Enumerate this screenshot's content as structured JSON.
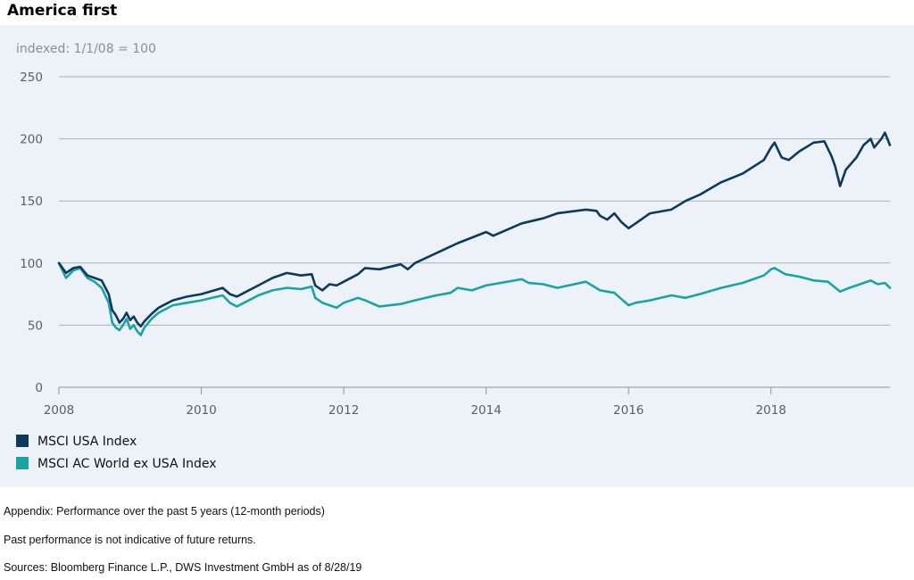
{
  "title": "America first",
  "footnotes": [
    "Appendix: Performance over the past 5 years (12-month periods)",
    "Past performance is not indicative of future returns.",
    "Sources: Bloomberg Finance L.P., DWS Investment GmbH as of 8/28/19"
  ],
  "chart_data": {
    "type": "line",
    "subtitle": "indexed: 1/1/08 = 100",
    "xlabel": "",
    "ylabel": "",
    "xlim": [
      2008,
      2019.67
    ],
    "ylim": [
      0,
      250
    ],
    "x_ticks": [
      2008,
      2010,
      2012,
      2014,
      2016,
      2018
    ],
    "y_ticks": [
      0,
      50,
      100,
      150,
      200,
      250
    ],
    "grid": true,
    "legend_position": "bottom-left",
    "series": [
      {
        "name": "MSCI USA Index",
        "color": "#0d3a5c",
        "x": [
          2008.0,
          2008.1,
          2008.2,
          2008.3,
          2008.4,
          2008.5,
          2008.6,
          2008.7,
          2008.75,
          2008.8,
          2008.85,
          2008.9,
          2008.95,
          2009.0,
          2009.05,
          2009.1,
          2009.15,
          2009.2,
          2009.3,
          2009.4,
          2009.5,
          2009.6,
          2009.8,
          2010.0,
          2010.3,
          2010.4,
          2010.5,
          2010.6,
          2010.8,
          2011.0,
          2011.2,
          2011.4,
          2011.55,
          2011.6,
          2011.7,
          2011.8,
          2011.9,
          2012.0,
          2012.2,
          2012.3,
          2012.5,
          2012.8,
          2012.9,
          2013.0,
          2013.3,
          2013.6,
          2014.0,
          2014.1,
          2014.5,
          2014.8,
          2015.0,
          2015.4,
          2015.55,
          2015.6,
          2015.7,
          2015.8,
          2015.9,
          2016.0,
          2016.1,
          2016.3,
          2016.6,
          2016.8,
          2017.0,
          2017.3,
          2017.6,
          2017.9,
          2018.0,
          2018.05,
          2018.15,
          2018.25,
          2018.4,
          2018.6,
          2018.75,
          2018.85,
          2018.9,
          2018.97,
          2019.05,
          2019.2,
          2019.3,
          2019.4,
          2019.45,
          2019.55,
          2019.6,
          2019.67
        ],
        "values": [
          100,
          92,
          96,
          97,
          90,
          88,
          86,
          75,
          62,
          58,
          52,
          55,
          60,
          54,
          57,
          52,
          49,
          53,
          59,
          64,
          67,
          70,
          73,
          75,
          80,
          75,
          73,
          76,
          82,
          88,
          92,
          90,
          91,
          82,
          78,
          83,
          82,
          85,
          91,
          96,
          95,
          99,
          95,
          100,
          108,
          116,
          125,
          122,
          132,
          136,
          140,
          143,
          142,
          138,
          135,
          140,
          133,
          128,
          132,
          140,
          143,
          150,
          155,
          165,
          172,
          183,
          193,
          197,
          185,
          183,
          190,
          197,
          198,
          186,
          178,
          162,
          175,
          185,
          195,
          200,
          193,
          200,
          205,
          195
        ]
      },
      {
        "name": "MSCI AC World ex USA Index",
        "color": "#1aa3a3",
        "x": [
          2008.0,
          2008.1,
          2008.2,
          2008.3,
          2008.4,
          2008.5,
          2008.6,
          2008.7,
          2008.75,
          2008.8,
          2008.85,
          2008.9,
          2008.95,
          2009.0,
          2009.05,
          2009.1,
          2009.15,
          2009.2,
          2009.3,
          2009.4,
          2009.5,
          2009.6,
          2009.8,
          2010.0,
          2010.3,
          2010.4,
          2010.5,
          2010.6,
          2010.8,
          2011.0,
          2011.2,
          2011.4,
          2011.55,
          2011.6,
          2011.7,
          2011.8,
          2011.9,
          2012.0,
          2012.2,
          2012.3,
          2012.5,
          2012.8,
          2013.0,
          2013.3,
          2013.5,
          2013.6,
          2013.8,
          2014.0,
          2014.5,
          2014.6,
          2014.8,
          2015.0,
          2015.4,
          2015.6,
          2015.8,
          2016.0,
          2016.1,
          2016.3,
          2016.6,
          2016.8,
          2017.0,
          2017.3,
          2017.6,
          2017.9,
          2018.0,
          2018.05,
          2018.2,
          2018.4,
          2018.6,
          2018.8,
          2018.97,
          2019.1,
          2019.3,
          2019.4,
          2019.5,
          2019.6,
          2019.67
        ],
        "values": [
          100,
          88,
          94,
          96,
          88,
          85,
          80,
          68,
          52,
          48,
          46,
          50,
          55,
          47,
          50,
          45,
          42,
          48,
          55,
          60,
          63,
          66,
          68,
          70,
          74,
          68,
          65,
          68,
          74,
          78,
          80,
          79,
          81,
          72,
          68,
          66,
          64,
          68,
          72,
          70,
          65,
          67,
          70,
          74,
          76,
          80,
          78,
          82,
          87,
          84,
          83,
          80,
          85,
          78,
          76,
          66,
          68,
          70,
          74,
          72,
          75,
          80,
          84,
          90,
          95,
          96,
          91,
          89,
          86,
          85,
          77,
          80,
          84,
          86,
          83,
          84,
          80
        ]
      }
    ]
  }
}
